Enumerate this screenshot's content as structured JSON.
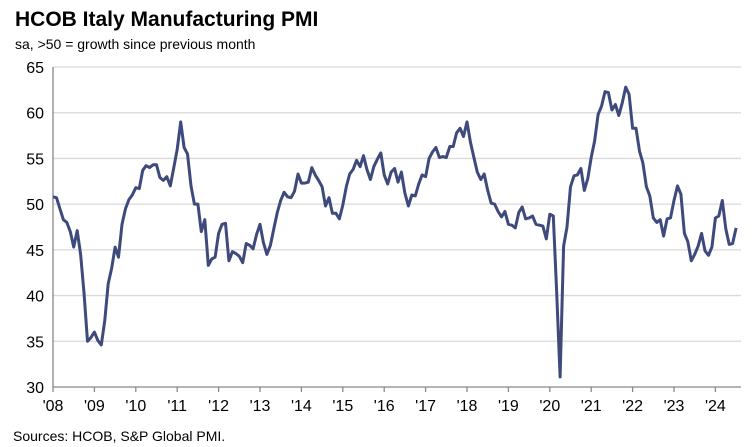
{
  "chart_data": {
    "type": "line",
    "title": "HCOB Italy Manufacturing PMI",
    "subtitle": "sa, >50 = growth since previous month",
    "source": "Sources: HCOB, S&P Global PMI.",
    "xlabel": "",
    "ylabel": "",
    "ylim": [
      30,
      65
    ],
    "yticks": [
      30,
      35,
      40,
      45,
      50,
      55,
      60,
      65
    ],
    "xticks": [
      "'08",
      "'09",
      "'10",
      "'11",
      "'12",
      "'13",
      "'14",
      "'15",
      "'16",
      "'17",
      "'18",
      "'19",
      "'20",
      "'21",
      "'22",
      "'23",
      "'24"
    ],
    "x_start": "2008-01",
    "x_frequency": "monthly",
    "grid": true,
    "legend": "none",
    "line_color": "#3E4A7C",
    "series": [
      {
        "values": [
          50.8,
          50.7,
          49.5,
          48.3,
          48.0,
          47.0,
          45.3,
          47.1,
          44.5,
          40.3,
          35.0,
          35.4,
          36.0,
          35.1,
          34.6,
          37.3,
          41.3,
          43.0,
          45.3,
          44.2,
          47.8,
          49.5,
          50.5,
          51.0,
          51.8,
          51.7,
          53.7,
          54.2,
          54.0,
          54.3,
          54.3,
          52.9,
          52.6,
          53.0,
          52.0,
          54.0,
          56.0,
          59.0,
          56.2,
          55.5,
          52.0,
          50.0,
          50.0,
          47.0,
          48.3,
          43.3,
          44.0,
          44.2,
          46.8,
          47.8,
          47.9,
          43.8,
          44.8,
          44.6,
          44.3,
          43.6,
          45.7,
          45.5,
          45.1,
          46.7,
          47.8,
          45.8,
          44.5,
          45.5,
          47.3,
          49.1,
          50.4,
          51.3,
          50.8,
          50.7,
          51.4,
          53.3,
          52.3,
          52.3,
          52.4,
          54.0,
          53.2,
          52.6,
          51.9,
          49.8,
          50.7,
          49.0,
          49.0,
          48.4,
          49.9,
          51.9,
          53.3,
          53.8,
          54.8,
          54.1,
          55.3,
          53.8,
          52.7,
          54.1,
          54.9,
          55.6,
          53.2,
          52.2,
          53.5,
          53.9,
          52.4,
          53.5,
          51.2,
          49.8,
          51.0,
          50.9,
          52.2,
          53.2,
          53.0,
          55.0,
          55.7,
          56.2,
          55.1,
          55.2,
          55.1,
          56.3,
          56.3,
          57.8,
          58.3,
          57.4,
          59.0,
          56.8,
          55.1,
          53.5,
          52.7,
          53.3,
          51.5,
          50.1,
          50.0,
          49.2,
          48.6,
          49.2,
          47.8,
          47.7,
          47.4,
          49.1,
          49.7,
          48.4,
          48.5,
          48.7,
          47.8,
          47.7,
          47.6,
          46.2,
          48.9,
          48.7,
          40.3,
          31.1,
          45.4,
          47.5,
          51.9,
          53.1,
          53.2,
          53.9,
          51.5,
          52.8,
          55.1,
          56.9,
          59.8,
          60.7,
          62.3,
          62.2,
          60.3,
          60.9,
          59.7,
          61.1,
          62.8,
          62.0,
          58.3,
          58.3,
          55.8,
          54.5,
          51.9,
          50.9,
          48.5,
          48.0,
          48.3,
          46.5,
          48.4,
          48.5,
          50.4,
          52.0,
          51.1,
          46.8,
          45.9,
          43.8,
          44.5,
          45.4,
          46.8,
          44.9,
          44.4,
          45.3,
          48.5,
          48.7,
          50.4,
          47.3,
          45.6,
          45.7,
          47.4
        ]
      }
    ]
  }
}
